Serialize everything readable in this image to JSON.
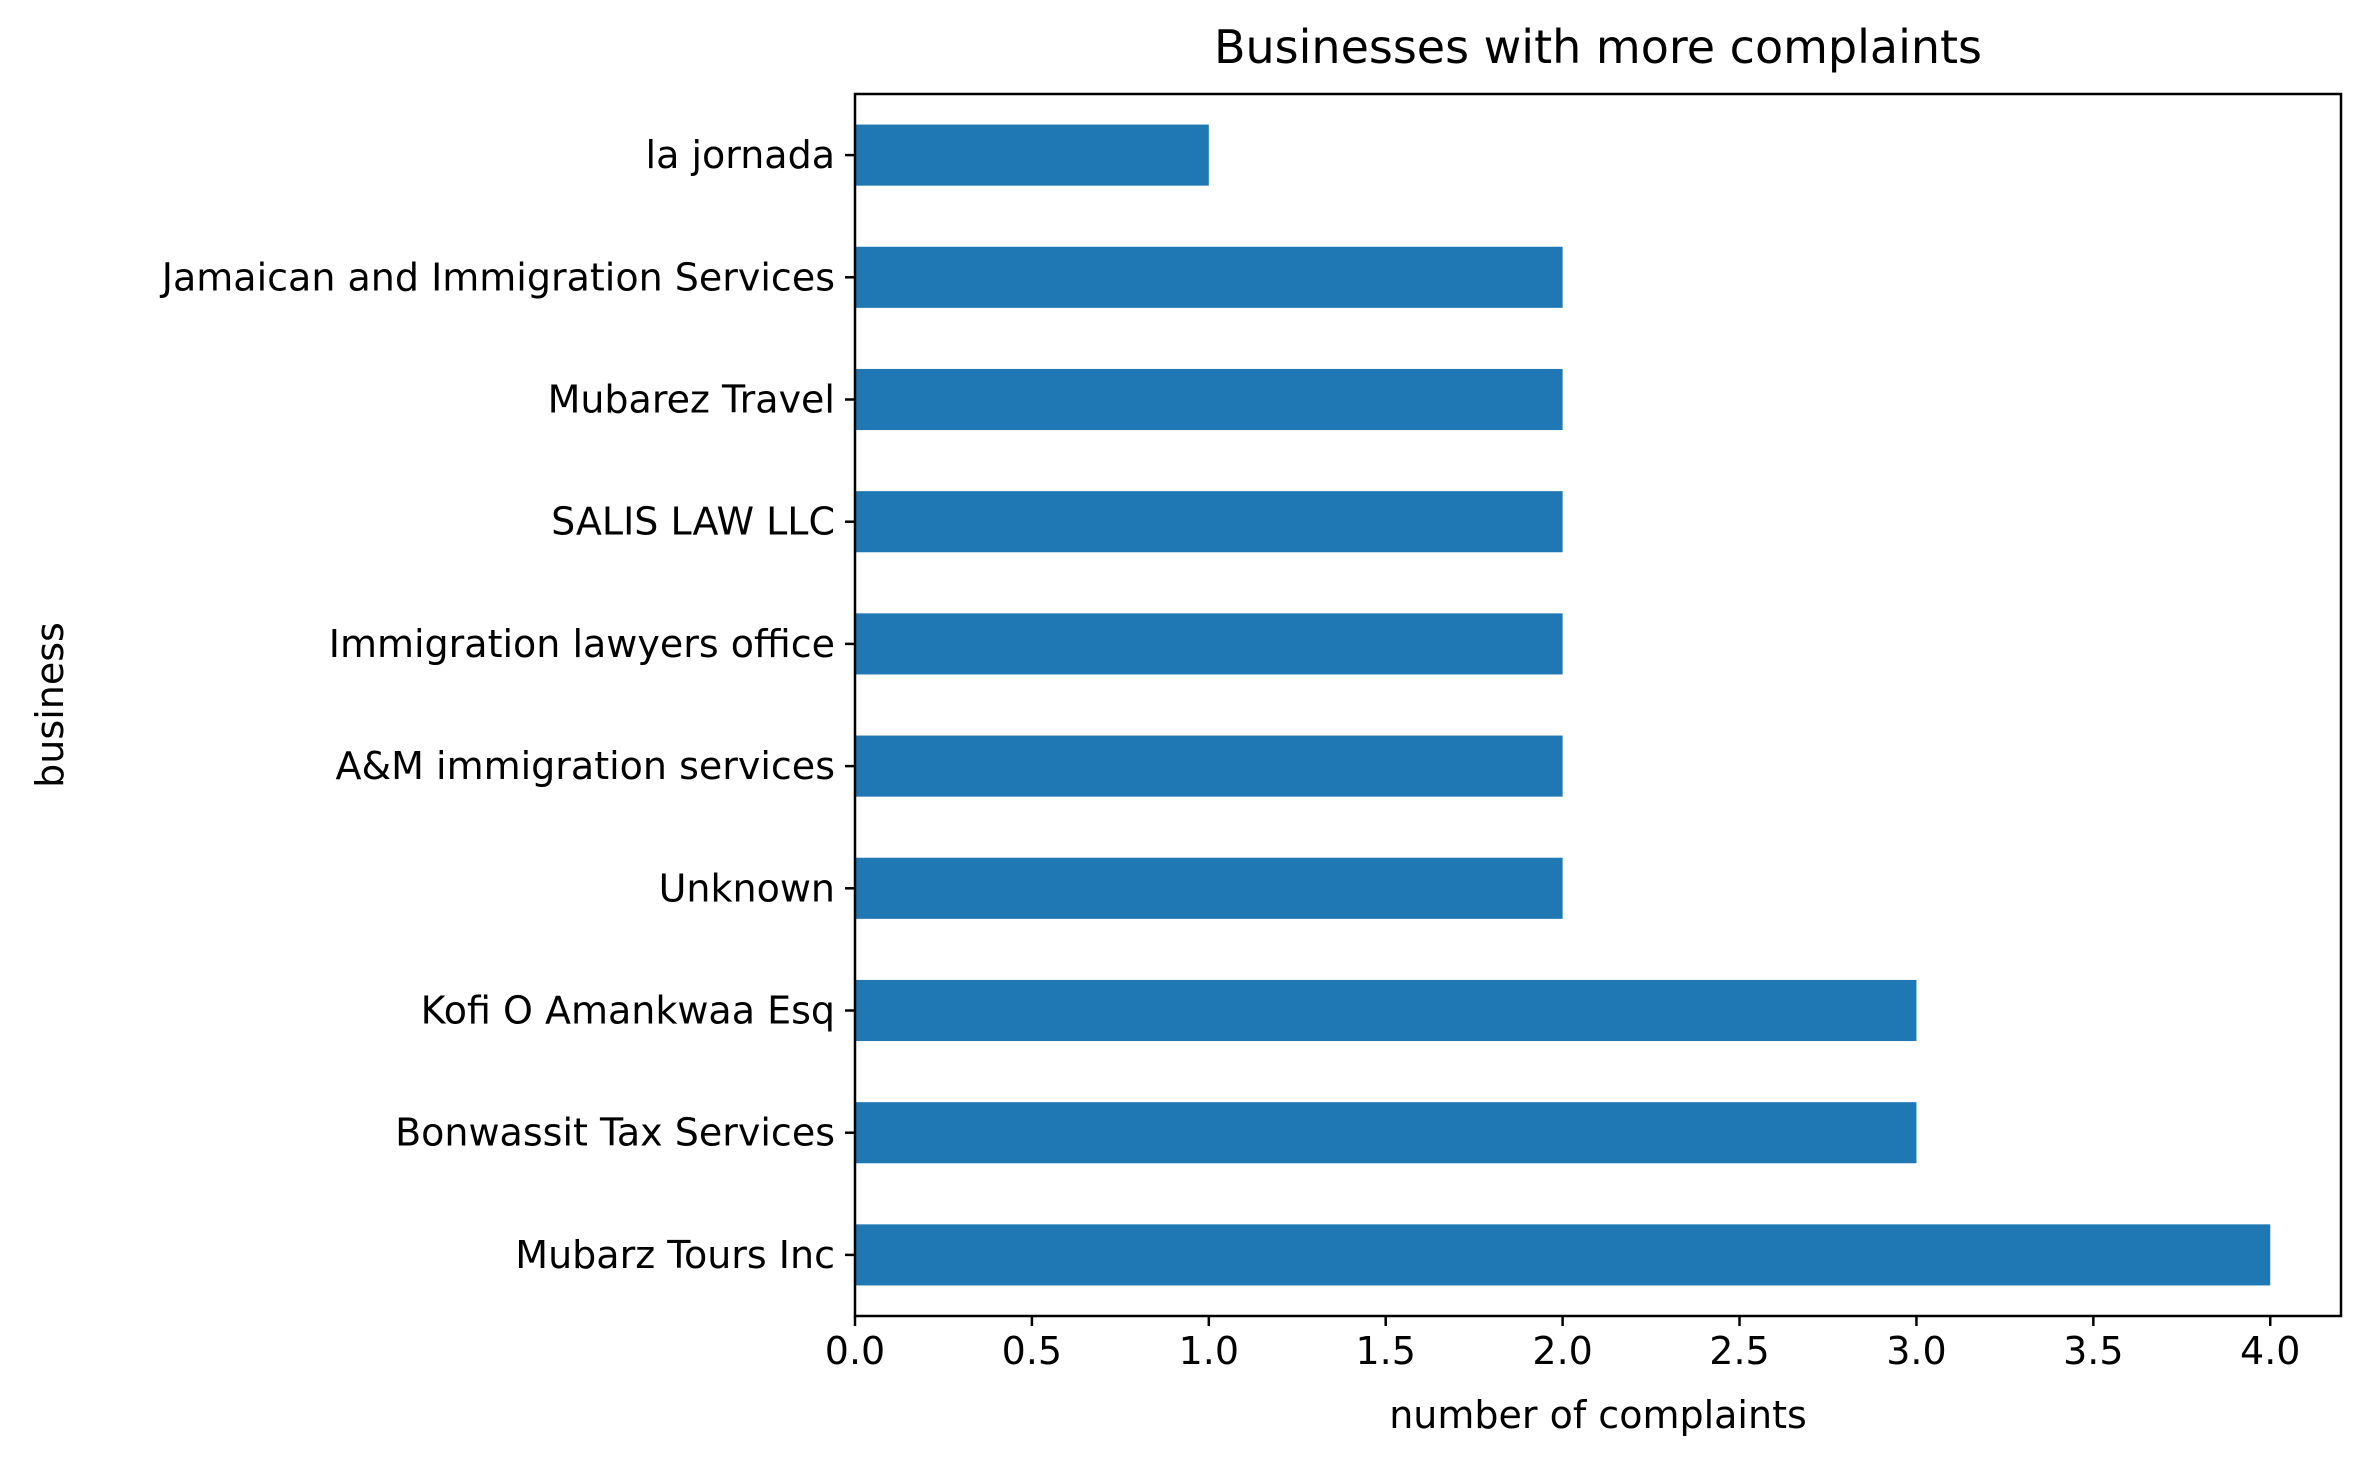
{
  "chart_data": {
    "type": "bar",
    "orientation": "horizontal",
    "title": "Businesses with more complaints",
    "xlabel": "number of complaints",
    "ylabel": "business",
    "categories": [
      "Mubarz Tours Inc",
      "Bonwassit Tax Services",
      "Kofi O Amankwaa Esq",
      "Unknown",
      "A&M immigration services",
      "Immigration lawyers office",
      "SALIS LAW LLC",
      "Mubarez Travel",
      "Jamaican and Immigration Services",
      "la jornada"
    ],
    "values": [
      4,
      3,
      3,
      2,
      2,
      2,
      2,
      2,
      2,
      1
    ],
    "xlim": [
      0,
      4.2
    ],
    "xticks": [
      0.0,
      0.5,
      1.0,
      1.5,
      2.0,
      2.5,
      3.0,
      3.5,
      4.0
    ],
    "xtick_labels": [
      "0.0",
      "0.5",
      "1.0",
      "1.5",
      "2.0",
      "2.5",
      "3.0",
      "3.5",
      "4.0"
    ],
    "bar_color": "#1f77b4",
    "grid": false,
    "legend": "none"
  }
}
